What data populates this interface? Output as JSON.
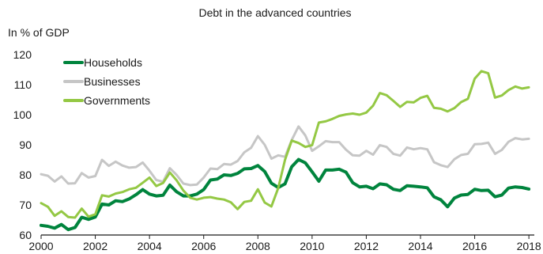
{
  "chart_data": {
    "type": "line",
    "title": "Debt in the advanced countries",
    "ylabel": "In % of GDP",
    "xlabel": "",
    "ylim": [
      60,
      120
    ],
    "xlim": [
      2000,
      2018.2
    ],
    "y_ticks": [
      60,
      70,
      80,
      90,
      100,
      110,
      120
    ],
    "x_ticks": [
      2000,
      2002,
      2004,
      2006,
      2008,
      2010,
      2012,
      2014,
      2016,
      2018
    ],
    "grid": false,
    "legend_position": "top-left",
    "series": [
      {
        "name": "Households",
        "color": "#00843d",
        "x": [
          2000,
          2000.25,
          2000.5,
          2000.75,
          2001,
          2001.25,
          2001.5,
          2001.75,
          2002,
          2002.25,
          2002.5,
          2002.75,
          2003,
          2003.25,
          2003.5,
          2003.75,
          2004,
          2004.25,
          2004.5,
          2004.75,
          2005,
          2005.25,
          2005.5,
          2005.75,
          2006,
          2006.25,
          2006.5,
          2006.75,
          2007,
          2007.25,
          2007.5,
          2007.75,
          2008,
          2008.25,
          2008.5,
          2008.75,
          2009,
          2009.25,
          2009.5,
          2009.75,
          2010,
          2010.25,
          2010.5,
          2010.75,
          2011,
          2011.25,
          2011.5,
          2011.75,
          2012,
          2012.25,
          2012.5,
          2012.75,
          2013,
          2013.25,
          2013.5,
          2013.75,
          2014,
          2014.25,
          2014.5,
          2014.75,
          2015,
          2015.25,
          2015.5,
          2015.75,
          2016,
          2016.25,
          2016.5,
          2016.75,
          2017,
          2017.25,
          2017.5,
          2017.75,
          2018
        ],
        "values": [
          63.2,
          62.9,
          62.3,
          63.5,
          61.8,
          62.5,
          65.9,
          65.2,
          66.0,
          70.3,
          70.0,
          71.4,
          71.1,
          72.0,
          73.4,
          75.1,
          73.6,
          73.0,
          73.2,
          76.6,
          74.4,
          73.0,
          73.0,
          73.6,
          75.1,
          78.3,
          78.6,
          80.0,
          79.8,
          80.5,
          82.0,
          82.1,
          83.1,
          81.1,
          77.2,
          75.8,
          77.0,
          82.7,
          85.1,
          84.0,
          81.0,
          77.9,
          81.6,
          81.6,
          81.9,
          80.9,
          77.4,
          76.0,
          76.2,
          75.4,
          77.0,
          76.7,
          75.2,
          74.8,
          76.4,
          76.2,
          76.0,
          75.7,
          72.7,
          71.7,
          69.4,
          72.3,
          73.3,
          73.5,
          75.2,
          74.8,
          74.9,
          72.7,
          73.3,
          75.6,
          76.0,
          75.8,
          75.3
        ]
      },
      {
        "name": "Businesses",
        "color": "#c6c6c6",
        "x": [
          2000,
          2000.25,
          2000.5,
          2000.75,
          2001,
          2001.25,
          2001.5,
          2001.75,
          2002,
          2002.25,
          2002.5,
          2002.75,
          2003,
          2003.25,
          2003.5,
          2003.75,
          2004,
          2004.25,
          2004.5,
          2004.75,
          2005,
          2005.25,
          2005.5,
          2005.75,
          2006,
          2006.25,
          2006.5,
          2006.75,
          2007,
          2007.25,
          2007.5,
          2007.75,
          2008,
          2008.25,
          2008.5,
          2008.75,
          2009,
          2009.25,
          2009.5,
          2009.75,
          2010,
          2010.25,
          2010.5,
          2010.75,
          2011,
          2011.25,
          2011.5,
          2011.75,
          2012,
          2012.25,
          2012.5,
          2012.75,
          2013,
          2013.25,
          2013.5,
          2013.75,
          2014,
          2014.25,
          2014.5,
          2014.75,
          2015,
          2015.25,
          2015.5,
          2015.75,
          2016,
          2016.25,
          2016.5,
          2016.75,
          2017,
          2017.25,
          2017.5,
          2017.75,
          2018
        ],
        "values": [
          80.2,
          79.7,
          77.8,
          79.5,
          77.1,
          77.2,
          80.6,
          79.1,
          79.6,
          85.0,
          83.0,
          84.4,
          83.1,
          82.4,
          82.6,
          84.1,
          81.4,
          78.3,
          77.7,
          82.2,
          80.0,
          77.1,
          76.6,
          76.8,
          79.1,
          82.1,
          81.9,
          83.6,
          83.4,
          84.6,
          87.5,
          89.0,
          92.9,
          90.0,
          85.4,
          86.5,
          86.0,
          91.6,
          96.1,
          93.1,
          88.0,
          89.5,
          91.2,
          90.9,
          90.9,
          88.4,
          86.5,
          86.4,
          88.0,
          86.7,
          89.9,
          89.3,
          87.0,
          86.4,
          89.1,
          88.5,
          88.9,
          88.5,
          84.2,
          83.2,
          82.6,
          85.2,
          86.6,
          87.0,
          90.2,
          90.3,
          90.7,
          87.0,
          88.3,
          91.0,
          92.2,
          91.8,
          92.0
        ]
      },
      {
        "name": "Governments",
        "color": "#94c844",
        "x": [
          2000,
          2000.25,
          2000.5,
          2000.75,
          2001,
          2001.25,
          2001.5,
          2001.75,
          2002,
          2002.25,
          2002.5,
          2002.75,
          2003,
          2003.25,
          2003.5,
          2003.75,
          2004,
          2004.25,
          2004.5,
          2004.75,
          2005,
          2005.25,
          2005.5,
          2005.75,
          2006,
          2006.25,
          2006.5,
          2006.75,
          2007,
          2007.25,
          2007.5,
          2007.75,
          2008,
          2008.25,
          2008.5,
          2008.75,
          2009,
          2009.25,
          2009.5,
          2009.75,
          2010,
          2010.25,
          2010.5,
          2010.75,
          2011,
          2011.25,
          2011.5,
          2011.75,
          2012,
          2012.25,
          2012.5,
          2012.75,
          2013,
          2013.25,
          2013.5,
          2013.75,
          2014,
          2014.25,
          2014.5,
          2014.75,
          2015,
          2015.25,
          2015.5,
          2015.75,
          2016,
          2016.25,
          2016.5,
          2016.75,
          2017,
          2017.25,
          2017.5,
          2017.75,
          2018
        ],
        "values": [
          70.6,
          69.4,
          66.4,
          67.9,
          66.0,
          65.8,
          68.8,
          66.1,
          66.9,
          73.2,
          72.8,
          73.8,
          74.3,
          75.2,
          75.7,
          77.4,
          79.1,
          76.3,
          77.3,
          80.8,
          78.2,
          74.8,
          72.4,
          71.8,
          72.4,
          72.6,
          72.1,
          71.8,
          70.9,
          68.6,
          71.0,
          71.4,
          75.2,
          70.8,
          69.5,
          75.6,
          85.0,
          91.4,
          90.6,
          89.3,
          89.9,
          97.4,
          97.8,
          98.6,
          99.6,
          100.1,
          100.4,
          100.0,
          100.7,
          103.0,
          107.2,
          106.5,
          104.6,
          102.6,
          104.3,
          104.1,
          105.6,
          106.3,
          102.3,
          102.0,
          101.1,
          102.2,
          104.2,
          105.3,
          112.0,
          114.5,
          113.8,
          105.7,
          106.4,
          108.2,
          109.4,
          108.7,
          109.1
        ]
      }
    ]
  }
}
